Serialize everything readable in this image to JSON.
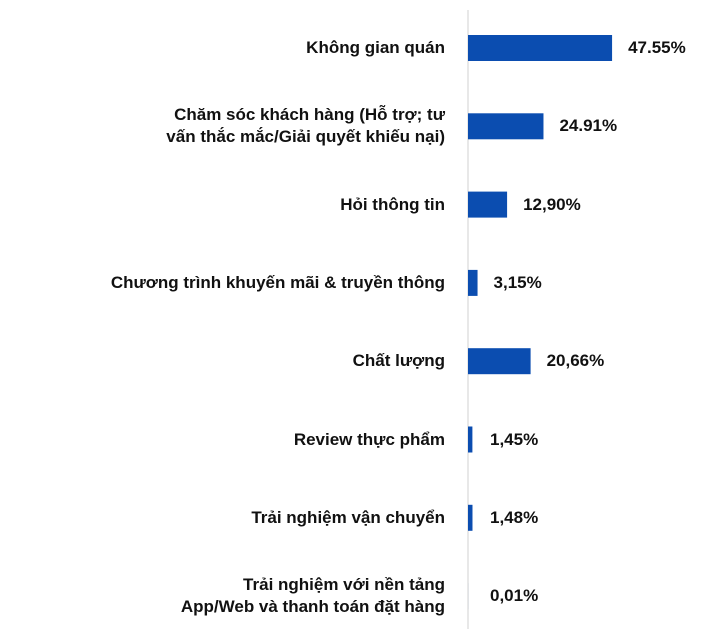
{
  "chart_data": {
    "type": "bar",
    "orientation": "horizontal",
    "categories": [
      "Không gian quán",
      "Chăm sóc khách hàng (Hỗ trợ; tư vấn thắc mắc/Giải quyết khiếu nại)",
      "Hỏi thông tin",
      "Chương trình khuyến mãi & truyền thông",
      "Chất lượng",
      "Review thực phẩm",
      "Trải nghiệm vận chuyển",
      "Trải nghiệm với nền tảng App/Web và thanh toán đặt hàng"
    ],
    "values": [
      47.55,
      24.91,
      12.9,
      3.15,
      20.66,
      1.45,
      1.48,
      0.01
    ],
    "value_labels": [
      "47.55%",
      "24.91%",
      "12,90%",
      "3,15%",
      "20,66%",
      "1,45%",
      "1,48%",
      "0,01%"
    ],
    "color": "#0b4db0"
  }
}
